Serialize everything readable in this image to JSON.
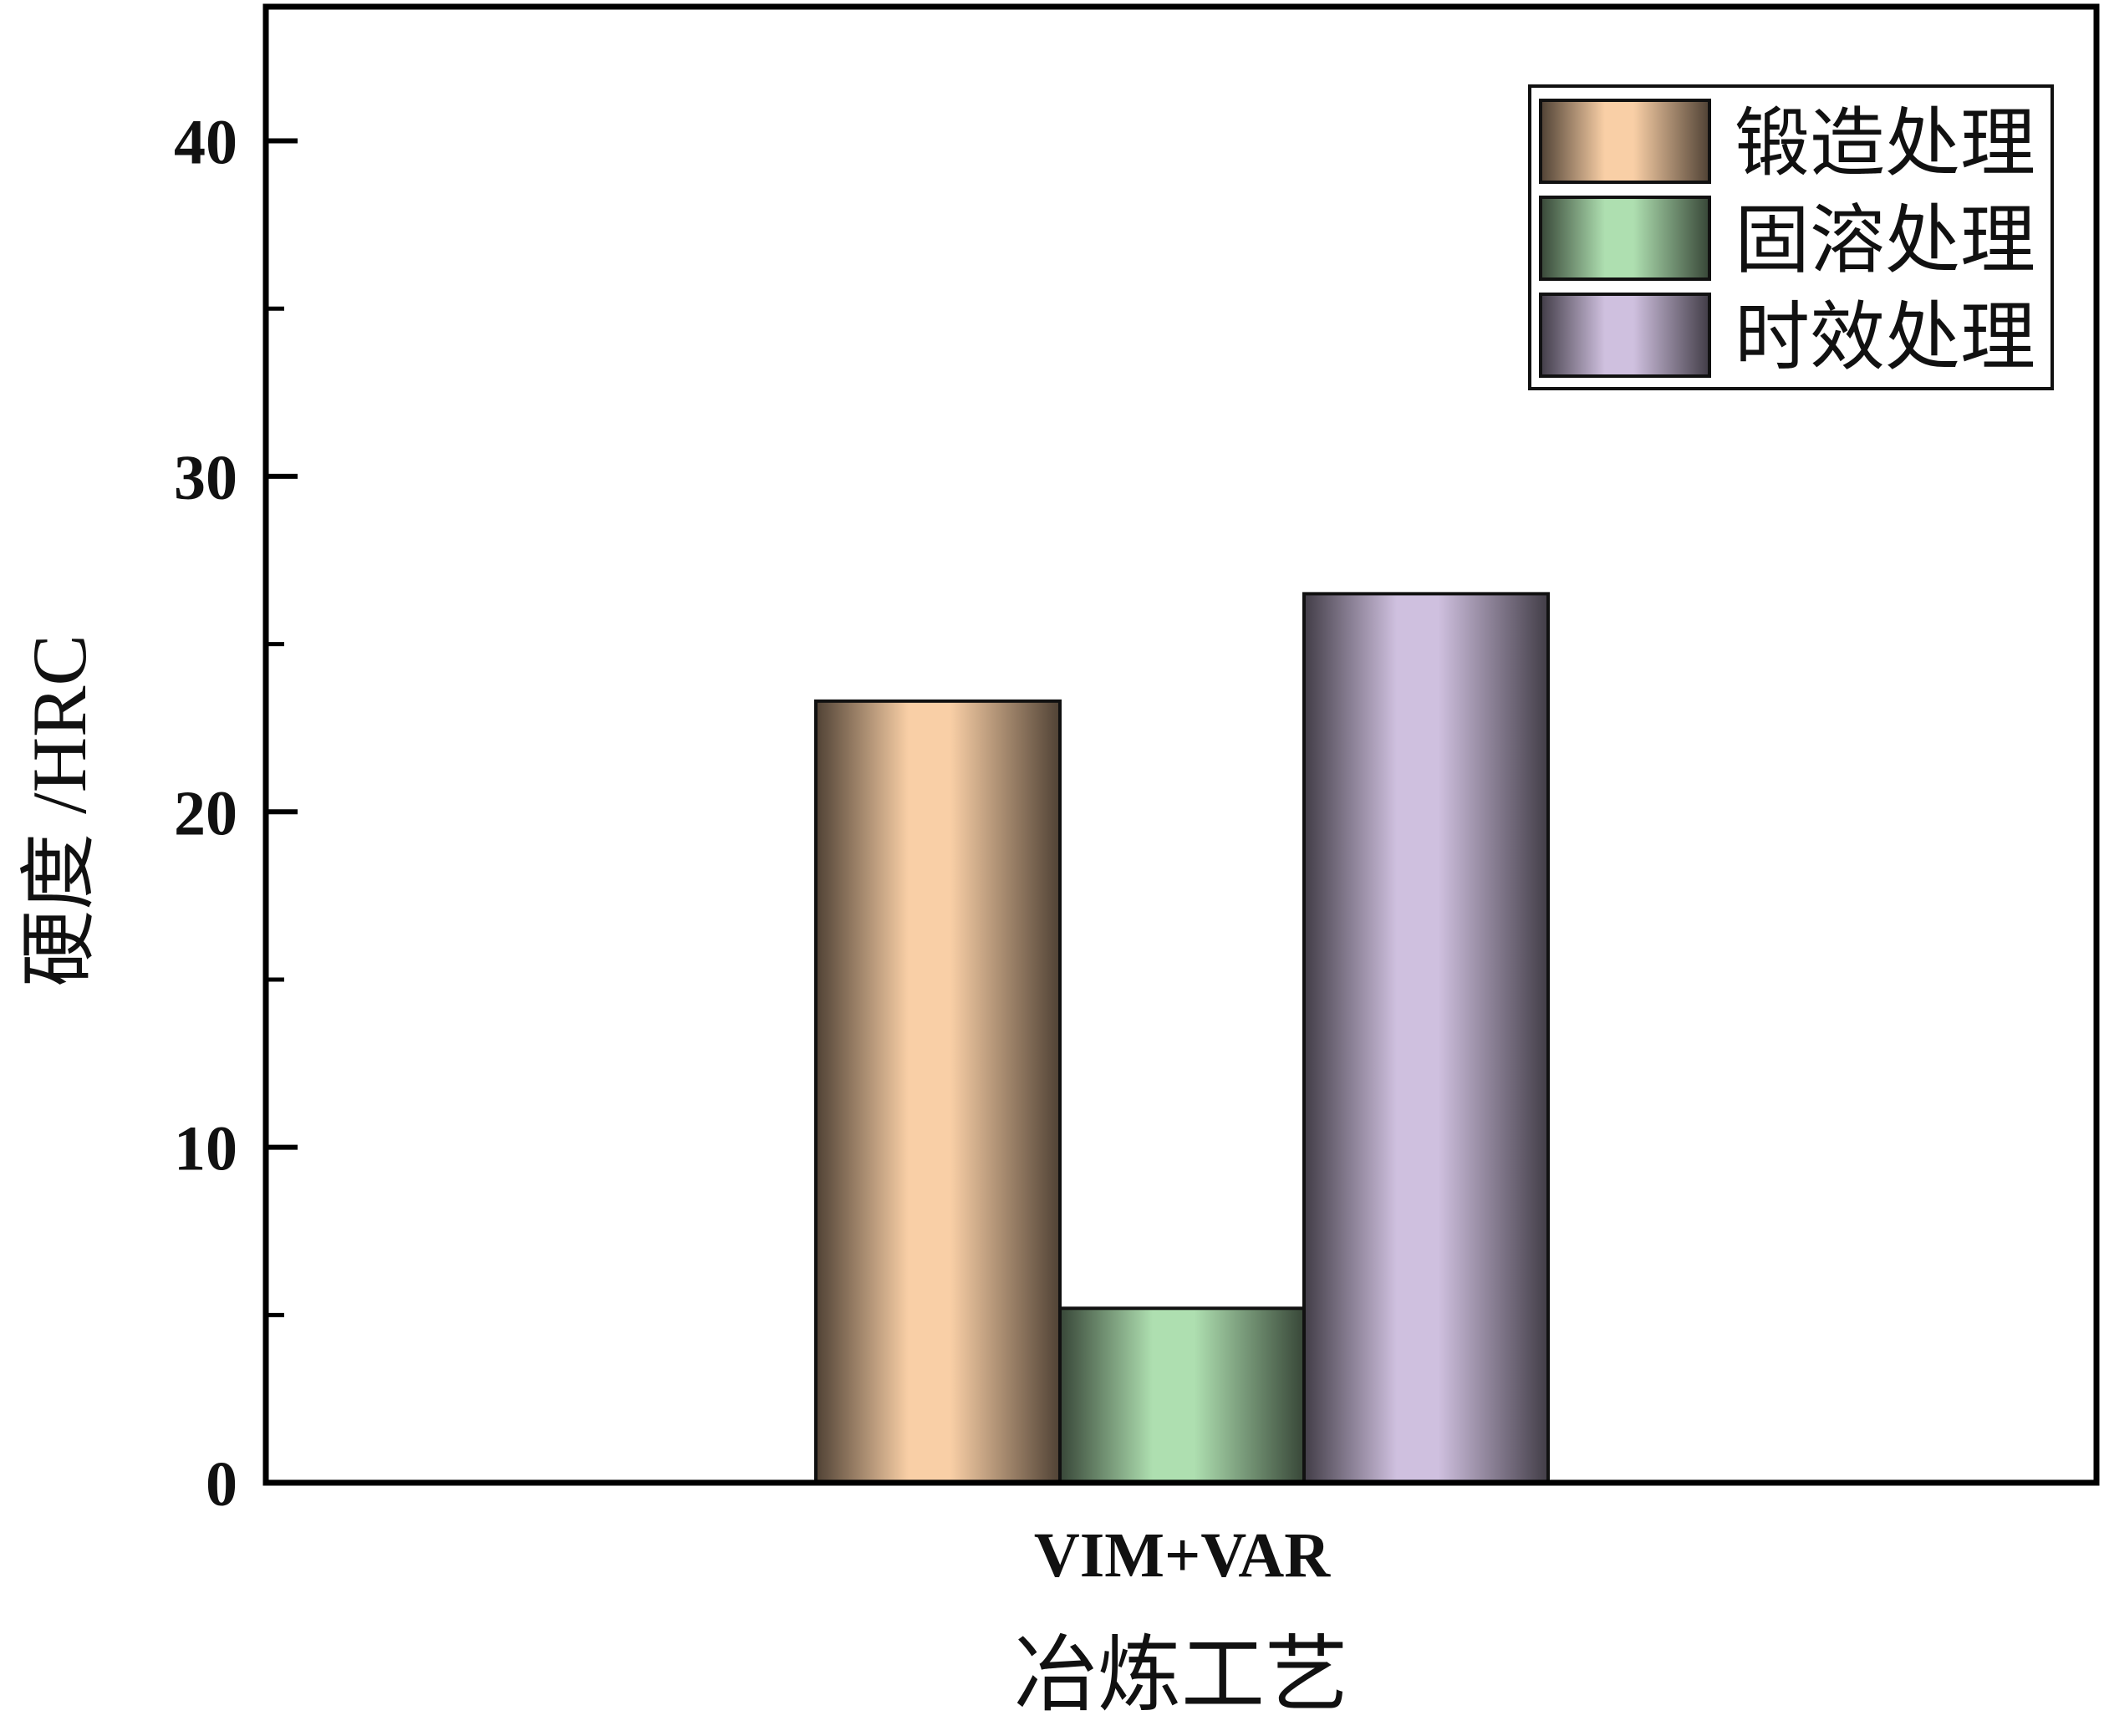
{
  "chart_data": {
    "type": "bar",
    "categories": [
      "VIM+VAR"
    ],
    "series": [
      {
        "name": "锻造处理",
        "values": [
          23.3
        ],
        "color": "#F9CFA6"
      },
      {
        "name": "固溶处理",
        "values": [
          5.2
        ],
        "color": "#AEDFB0"
      },
      {
        "name": "时效处理",
        "values": [
          26.5
        ],
        "color": "#CFC0DF"
      }
    ],
    "xlabel": "冶炼工艺",
    "ylabel": "硬度 /HRC",
    "ylim": [
      0,
      40
    ],
    "yticks": [
      0,
      10,
      20,
      30,
      40
    ],
    "grid": false,
    "legend_position": "top-right"
  }
}
